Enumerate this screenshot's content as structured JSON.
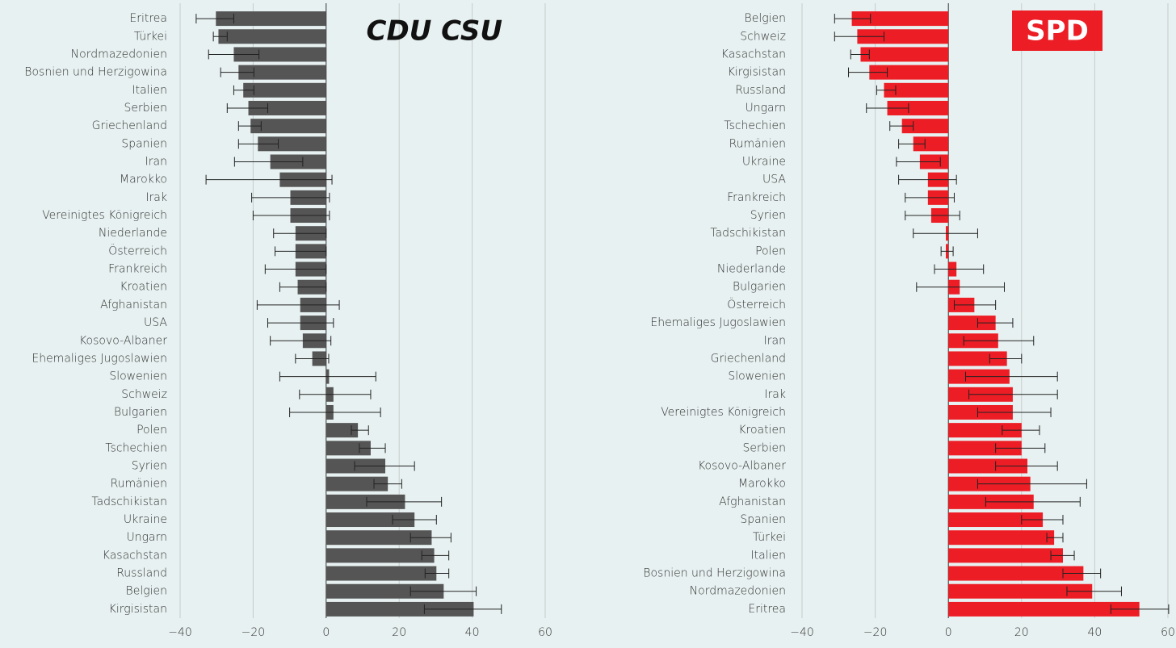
{
  "chart_data": [
    {
      "type": "bar",
      "orientation": "horizontal",
      "title": "CDU CSU",
      "color": "#555555",
      "categories": [
        "Eritrea",
        "Türkei",
        "Nordmazedonien",
        "Bosnien und Herzigowina",
        "Italien",
        "Serbien",
        "Griechenland",
        "Spanien",
        "Iran",
        "Marokko",
        "Irak",
        "Vereinigtes Königreich",
        "Niederlande",
        "Österreich",
        "Frankreich",
        "Kroatien",
        "Afghanistan",
        "USA",
        "Kosovo-Albaner",
        "Ehemaliges Jugoslawien",
        "Slowenien",
        "Schweiz",
        "Bulgarien",
        "Polen",
        "Tschechien",
        "Syrien",
        "Rumänien",
        "Tadschikistan",
        "Ukraine",
        "Ungarn",
        "Kasachstan",
        "Russland",
        "Belgien",
        "Kirgisistan"
      ],
      "values": [
        -30.2,
        -29.5,
        -25.3,
        -24,
        -22.7,
        -21.3,
        -20.7,
        -18.7,
        -15.3,
        -12.7,
        -9.8,
        -9.8,
        -8.4,
        -8.4,
        -8.4,
        -7.8,
        -7.1,
        -7.1,
        -6.4,
        -3.8,
        0.8,
        2,
        2,
        8.7,
        12.2,
        16.2,
        16.9,
        21.6,
        24.2,
        28.9,
        29.6,
        30.2,
        32.2,
        40.4
      ],
      "lower": [
        -35.6,
        -30.9,
        -32.2,
        -28.9,
        -25.3,
        -27.1,
        -24,
        -24,
        -25.1,
        -32.9,
        -20.4,
        -20,
        -14.4,
        -14,
        -16.7,
        -12.7,
        -18.9,
        -16,
        -15.3,
        -8.4,
        -12.7,
        -7.3,
        -10,
        6.9,
        9.1,
        7.8,
        13.1,
        11.1,
        18.2,
        23.1,
        26.2,
        27.1,
        23.1,
        26.9
      ],
      "upper": [
        -25.3,
        -27.1,
        -18.4,
        -19.8,
        -19.8,
        -16,
        -17.8,
        -13.1,
        -6.4,
        1.6,
        0.9,
        0.9,
        0,
        0,
        0,
        0,
        3.6,
        2,
        1.3,
        0.7,
        13.6,
        12.2,
        14.9,
        11.6,
        16.2,
        24.2,
        20.7,
        31.6,
        30.2,
        34.2,
        33.6,
        33.6,
        41.1,
        48
      ],
      "xlim": [
        -40,
        60
      ],
      "xticks": [
        {
          "value": -40,
          "label": "−40"
        },
        {
          "value": -20,
          "label": "−20"
        },
        0,
        20,
        40,
        60
      ],
      "grid": true
    },
    {
      "type": "bar",
      "orientation": "horizontal",
      "title": "SPD",
      "color": "#ec1d25",
      "categories": [
        "Belgien",
        "Schweiz",
        "Kasachstan",
        "Kirgisistan",
        "Russland",
        "Ungarn",
        "Tschechien",
        "Rumänien",
        "Ukraine",
        "USA",
        "Frankreich",
        "Syrien",
        "Tadschikistan",
        "Polen",
        "Niederlande",
        "Bulgarien",
        "Österreich",
        "Ehemaliges Jugoslawien",
        "Iran",
        "Griechenland",
        "Slowenien",
        "Irak",
        "Vereinigtes Königreich",
        "Kroatien",
        "Serbien",
        "Kosovo-Albaner",
        "Marokko",
        "Afghanistan",
        "Spanien",
        "Türkei",
        "Italien",
        "Bosnien und Herzigowina",
        "Nordmazedonien",
        "Eritrea"
      ],
      "values": [
        -26.4,
        -24.9,
        -24,
        -21.6,
        -17.6,
        -16.7,
        -12.7,
        -9.6,
        -7.8,
        -5.6,
        -5.6,
        -4.7,
        -0.7,
        -0.7,
        2.2,
        3.1,
        7.1,
        12.9,
        13.6,
        16,
        16.7,
        17.6,
        17.6,
        20,
        20,
        21.6,
        22.4,
        23.3,
        25.8,
        28.9,
        31.3,
        36.9,
        39.3,
        52.2
      ],
      "lower": [
        -31.1,
        -31.1,
        -26.7,
        -27.3,
        -19.6,
        -22.4,
        -16,
        -13.6,
        -14.2,
        -13.6,
        -11.8,
        -11.8,
        -9.6,
        -2,
        -3.8,
        -8.7,
        1.6,
        8,
        4.2,
        11.3,
        4.7,
        5.6,
        8,
        14.7,
        12.9,
        12.9,
        8,
        10.2,
        20,
        26.9,
        28,
        31.3,
        32.4,
        44.4
      ],
      "upper": [
        -21.3,
        -17.6,
        -21.6,
        -16.7,
        -14.4,
        -10.9,
        -9.6,
        -6.4,
        -2.2,
        2.2,
        1.6,
        3.1,
        8,
        1.3,
        9.6,
        15.3,
        12.9,
        17.6,
        23.3,
        20,
        29.8,
        29.8,
        28,
        24.9,
        26.4,
        29.8,
        37.8,
        36,
        31.3,
        31.3,
        34.4,
        41.6,
        47.3,
        60.2
      ],
      "xlim": [
        -40,
        60
      ],
      "xticks": [
        {
          "value": -40,
          "label": "−40"
        },
        {
          "value": -20,
          "label": "−20"
        },
        0,
        20,
        40,
        60
      ],
      "grid": true
    }
  ]
}
